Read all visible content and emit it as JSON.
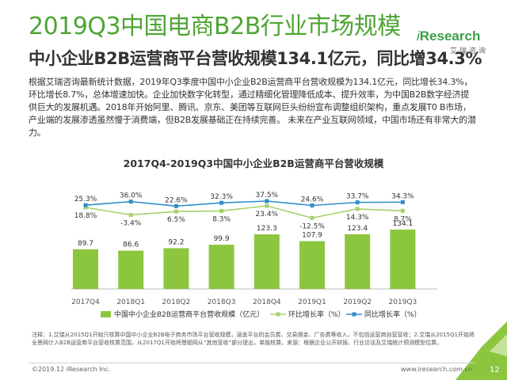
{
  "page": {
    "title": "2019Q3中国电商B2B行业市场规模",
    "subtitle": "中小企业B2B运营商平台营收规模134.1亿元，同比增34.3%",
    "paragraph": "根据艾瑞咨询最新统计数据，2019年Q3季度中国中小企业B2B运营商平台营收规模为134.1亿元，同比增长34.3%，环比增长8.7%，总体增速加快。企业加快数字化转型，通过精细化管理降低成本、提升效率，为中国B2B数字经济提供巨大的发展机遇。2018年开始阿里、腾讯、京东、美团等互联网巨头纷纷宣布调整组织架构，重点发展T0 B市场，产业端的发展渗透虽然慢于消费端，但B2B发展基础正在持续完善。 未来在产业互联网领域，中国市场还有非常大的潜力。",
    "notes": "注释：1.艾瑞从2015Q1开始只核算中国中小企业B2B电子商务市场平台营收规模，涵盖平台的会员费、交易佣金、广告费等收入，不包括运营商自营营收；2.艾瑞从2015Q1开始将全景网计入B2B运营商平台营收核算范围，从2017Q1开始将慧聪网从“其他营收”部分提出，单独核算。来源：根据企业公开财报、行业访谈及艾瑞统计预测模型估算。",
    "footer_left": "©2019.12 iResearch Inc.",
    "footer_right": "www.iresearch.com.cn",
    "page_number": "12"
  },
  "logo": {
    "prefix": "i",
    "main": "Research",
    "sub": "艾瑞咨询"
  },
  "colors": {
    "bar": "#8cc63f",
    "qoq": "#a5d36c",
    "yoy": "#2f8ec9",
    "title_green": "#4ea535",
    "corner": "#8cc63f"
  },
  "chart_data": {
    "type": "bar",
    "title": "2017Q4-2019Q3中国中小企业B2B运营商平台营收规模",
    "categories": [
      "2017Q4",
      "2018Q1",
      "2018Q2",
      "2018Q3",
      "2018Q4",
      "2019Q1",
      "2019Q2",
      "2019Q3"
    ],
    "series": [
      {
        "name": "中国中小企业B2B运营商平台营收规模（亿元）",
        "kind": "bar",
        "values": [
          89.7,
          86.6,
          92.2,
          99.9,
          123.3,
          107.9,
          123.4,
          134.1
        ],
        "labels": [
          "89.7",
          "86.6",
          "92.2",
          "99.9",
          "123.3",
          "107.9",
          "123.4",
          "134.1"
        ]
      },
      {
        "name": "环比增长率（%）",
        "kind": "line",
        "values": [
          18.8,
          -3.4,
          6.5,
          8.3,
          23.4,
          -12.5,
          14.3,
          8.7
        ],
        "labels": [
          "18.8%",
          "-3.4%",
          "6.5%",
          "8.3%",
          "23.4%",
          "-12.5%",
          "14.3%",
          "8.7%"
        ]
      },
      {
        "name": "同比增长率（%）",
        "kind": "line",
        "values": [
          25.3,
          36.0,
          22.6,
          32.3,
          37.5,
          24.6,
          33.7,
          34.3
        ],
        "labels": [
          "25.3%",
          "36.0%",
          "22.6%",
          "32.3%",
          "37.5%",
          "24.6%",
          "33.7%",
          "34.3%"
        ]
      }
    ],
    "legend_position": "bottom",
    "grid": false
  }
}
